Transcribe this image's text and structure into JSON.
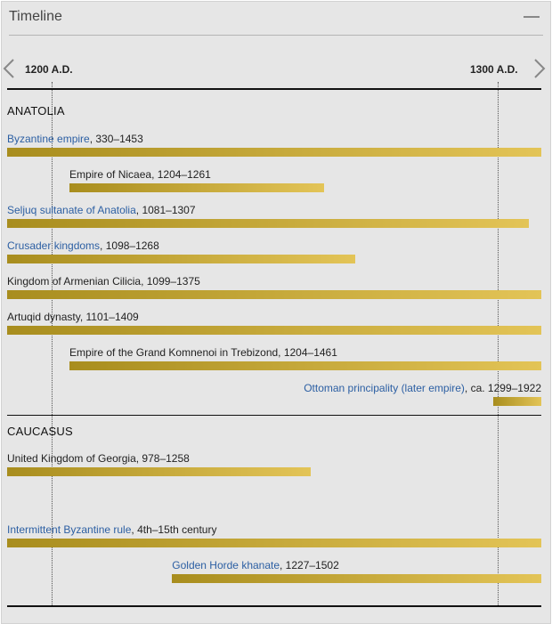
{
  "panel": {
    "title": "Timeline"
  },
  "axis": {
    "tick_1200": "1200 A.D.",
    "tick_1300": "1300 A.D."
  },
  "colors": {
    "bar_start": "#a88d1e",
    "bar_end": "#e3c457",
    "link": "#2c5fa3"
  },
  "icons": {
    "prev": "chevron-left-icon",
    "next": "chevron-right-icon",
    "collapse": "minus-icon"
  },
  "sections": [
    {
      "title": "ANATOLIA",
      "items": [
        {
          "link": "Byzantine empire",
          "dates": ", 330–1453",
          "start": 330,
          "end": 1453
        },
        {
          "link": "",
          "dates": "Empire of Nicaea, 1204–1261",
          "start": 1204,
          "end": 1261
        },
        {
          "link": "Seljuq sultanate of Anatolia",
          "dates": ", 1081–1307",
          "start": 1081,
          "end": 1307
        },
        {
          "link": "Crusader kingdoms",
          "dates": ", 1098–1268",
          "start": 1098,
          "end": 1268
        },
        {
          "link": "",
          "dates": "Kingdom of Armenian Cilicia, 1099–1375",
          "start": 1099,
          "end": 1375
        },
        {
          "link": "",
          "dates": "Artuqid dynasty, 1101–1409",
          "start": 1101,
          "end": 1409
        },
        {
          "link": "",
          "dates": "Empire of the Grand Komnenoi in Trebizond, 1204–1461",
          "start": 1204,
          "end": 1461
        },
        {
          "link": "Ottoman principality (later empire)",
          "dates": ", ca. 1299–1922",
          "start": 1299,
          "end": 1922
        }
      ]
    },
    {
      "title": "CAUCASUS",
      "items": [
        {
          "link": "",
          "dates": "United Kingdom of Georgia, 978–1258",
          "start": 978,
          "end": 1258
        },
        {
          "link": "Intermittent Byzantine rule",
          "dates": ", 4th–15th century",
          "start": 300,
          "end": 1500
        },
        {
          "link": "Golden Horde khanate",
          "dates": ", 1227–1502",
          "start": 1227,
          "end": 1502
        }
      ]
    }
  ]
}
